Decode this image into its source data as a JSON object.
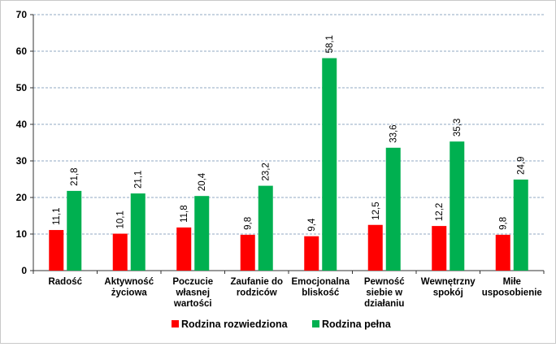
{
  "chart_data": {
    "type": "bar",
    "title": "",
    "xlabel": "",
    "ylabel": "",
    "ylim": [
      0,
      70
    ],
    "yticks": [
      0,
      10,
      20,
      30,
      40,
      50,
      60,
      70
    ],
    "grid": true,
    "legend_position": "bottom",
    "categories": [
      [
        "Radość"
      ],
      [
        "Aktywność",
        "życiowa"
      ],
      [
        "Poczucie",
        "własnej",
        "wartości"
      ],
      [
        "Zaufanie do",
        "rodziców"
      ],
      [
        "Emocjonalna",
        "bliskość"
      ],
      [
        "Pewność",
        "siebie w",
        "działaniu"
      ],
      [
        "Wewnętrzny",
        "spokój"
      ],
      [
        "Miłe",
        "usposobienie"
      ]
    ],
    "series": [
      {
        "name": "Rodzina rozwiedziona",
        "color": "#ff0000",
        "values": [
          11.1,
          10.1,
          11.8,
          9.8,
          9.4,
          12.5,
          12.2,
          9.8
        ],
        "labels": [
          "11,1",
          "10,1",
          "11,8",
          "9,8",
          "9,4",
          "12,5",
          "12,2",
          "9,8"
        ]
      },
      {
        "name": "Rodzina pełna",
        "color": "#00b050",
        "values": [
          21.8,
          21.1,
          20.4,
          23.2,
          58.1,
          33.6,
          35.3,
          24.9
        ],
        "labels": [
          "21,8",
          "21,1",
          "20,4",
          "23,2",
          "58,1",
          "33,6",
          "35,3",
          "24,9"
        ]
      }
    ]
  }
}
